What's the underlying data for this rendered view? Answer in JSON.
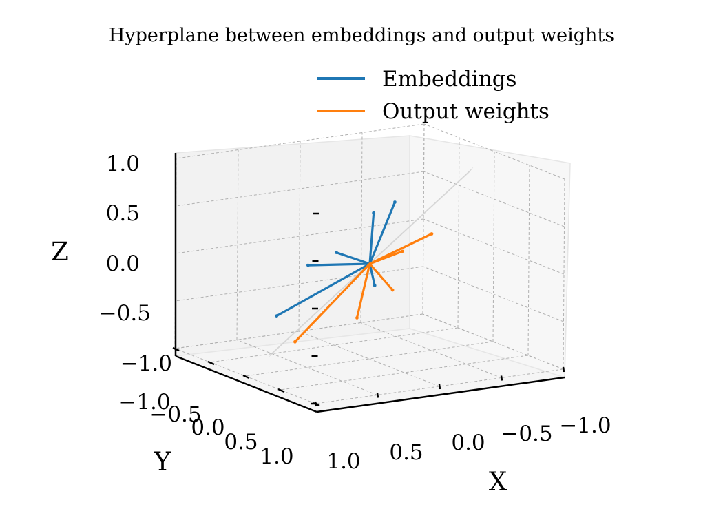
{
  "chart_data": {
    "type": "3d-quiver",
    "title": "Hyperplane between embeddings and output weights",
    "xlabel": "X",
    "ylabel": "Y",
    "zlabel": "Z",
    "xlim": [
      -1.0,
      1.0
    ],
    "ylim": [
      -1.0,
      1.0
    ],
    "zlim": [
      -1.0,
      1.0
    ],
    "ticks": {
      "x": [
        "1.0",
        "0.5",
        "0.0",
        "−0.5",
        "−1.0"
      ],
      "y": [
        "−1.0",
        "−0.5",
        "0.0",
        "0.5",
        "1.0"
      ],
      "z": [
        "1.0",
        "0.5",
        "0.0",
        "−0.5",
        "−1.0"
      ]
    },
    "grid": true,
    "legend_position": "top-right",
    "series": [
      {
        "name": "Embeddings",
        "color": "#1f77b4",
        "vectors": [
          [
            0.0,
            -0.35,
            0.75
          ],
          [
            0.0,
            -0.05,
            0.55
          ],
          [
            0.55,
            0.35,
            -0.55
          ],
          [
            0.1,
            0.7,
            -0.2
          ],
          [
            0.3,
            -0.6,
            0.0
          ],
          [
            0.1,
            0.3,
            0.05
          ]
        ]
      },
      {
        "name": "Output weights",
        "color": "#ff7f0e",
        "vectors": [
          [
            -0.1,
            -0.7,
            0.5
          ],
          [
            0.05,
            -0.55,
            0.3
          ],
          [
            0.4,
            0.35,
            -0.85
          ],
          [
            0.1,
            0.0,
            -0.55
          ],
          [
            -0.1,
            -0.15,
            -0.25
          ]
        ]
      }
    ],
    "hyperplane": {
      "color": "#cccccc",
      "shown": true
    }
  }
}
